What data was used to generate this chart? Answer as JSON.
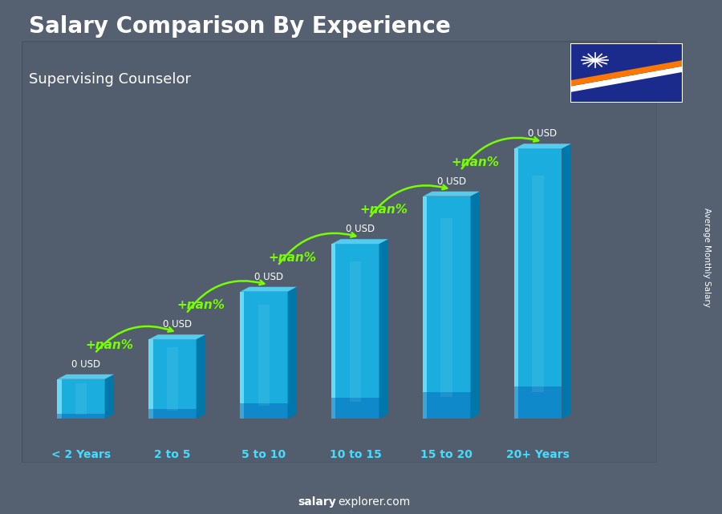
{
  "title": "Salary Comparison By Experience",
  "subtitle": "Supervising Counselor",
  "categories": [
    "< 2 Years",
    "2 to 5",
    "5 to 10",
    "10 to 15",
    "15 to 20",
    "20+ Years"
  ],
  "salary_labels": [
    "0 USD",
    "0 USD",
    "0 USD",
    "0 USD",
    "0 USD",
    "0 USD"
  ],
  "pct_labels": [
    "+nan%",
    "+nan%",
    "+nan%",
    "+nan%",
    "+nan%"
  ],
  "title_color": "#FFFFFF",
  "subtitle_color": "#FFFFFF",
  "pct_color": "#77FF00",
  "xlabel_color": "#44DDFF",
  "footer_salary_color": "#FFFFFF",
  "footer_explorer_color": "#FFFFFF",
  "rotated_label": "Average Monthly Salary",
  "bar_heights": [
    1.0,
    2.0,
    3.2,
    4.4,
    5.6,
    6.8
  ],
  "bar_color_front": "#1AADDE",
  "bar_color_right": "#0077AA",
  "bar_color_top": "#55CCEE",
  "bar_color_highlight": "#88EEFF",
  "bar_width": 0.52,
  "bar_depth_x": 0.1,
  "bar_depth_y": 0.12,
  "bg_color": "#556070",
  "overlay_color": "#334455",
  "xlim": [
    -0.65,
    6.3
  ],
  "ylim": [
    -1.1,
    9.5
  ],
  "footer_text_salary": "salary",
  "footer_text_rest": "explorer.com"
}
